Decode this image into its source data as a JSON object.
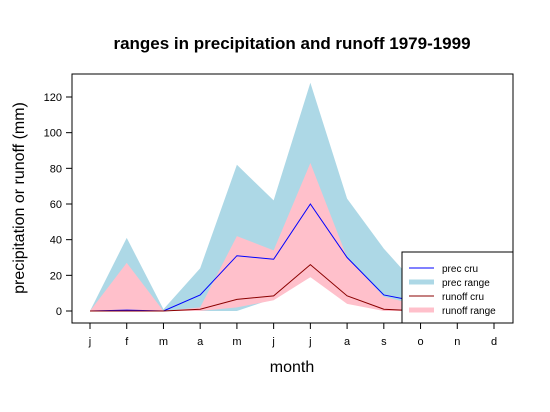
{
  "chart_data": {
    "type": "area",
    "title": "ranges in precipitation and runoff 1979-1999",
    "xlabel": "month",
    "ylabel": "precipitation or runoff (mm)",
    "categories": [
      "j",
      "f",
      "m",
      "a",
      "m",
      "j",
      "j",
      "a",
      "s",
      "o",
      "n",
      "d"
    ],
    "yticks": [
      0,
      20,
      40,
      60,
      80,
      100,
      120
    ],
    "ylim": [
      -5,
      133
    ],
    "grid": false,
    "legend_position": "bottom-right",
    "series": [
      {
        "name": "prec cru",
        "kind": "line",
        "color": "#0000ff",
        "values": [
          0,
          0.5,
          0,
          9,
          31,
          29,
          60,
          30,
          9,
          5,
          null,
          null
        ]
      },
      {
        "name": "prec range",
        "kind": "band",
        "color": "#add8e6",
        "low": [
          0,
          0,
          0,
          0,
          0,
          7,
          19,
          10,
          2,
          0,
          null,
          null
        ],
        "high": [
          0,
          41,
          1,
          24,
          82,
          62,
          128,
          63,
          35,
          12,
          null,
          null
        ]
      },
      {
        "name": "runoff cru",
        "kind": "line",
        "color": "#8b0000",
        "values": [
          0,
          0,
          0,
          1,
          6.5,
          8.5,
          26,
          8.5,
          1,
          0,
          null,
          null
        ]
      },
      {
        "name": "runoff range",
        "kind": "band",
        "color": "#ffc0cb",
        "low": [
          0,
          0,
          0,
          0,
          2,
          6,
          19,
          4,
          0,
          0,
          null,
          null
        ],
        "high": [
          0,
          27,
          0,
          2,
          42,
          34,
          83,
          30,
          8,
          3,
          null,
          null
        ]
      }
    ]
  }
}
